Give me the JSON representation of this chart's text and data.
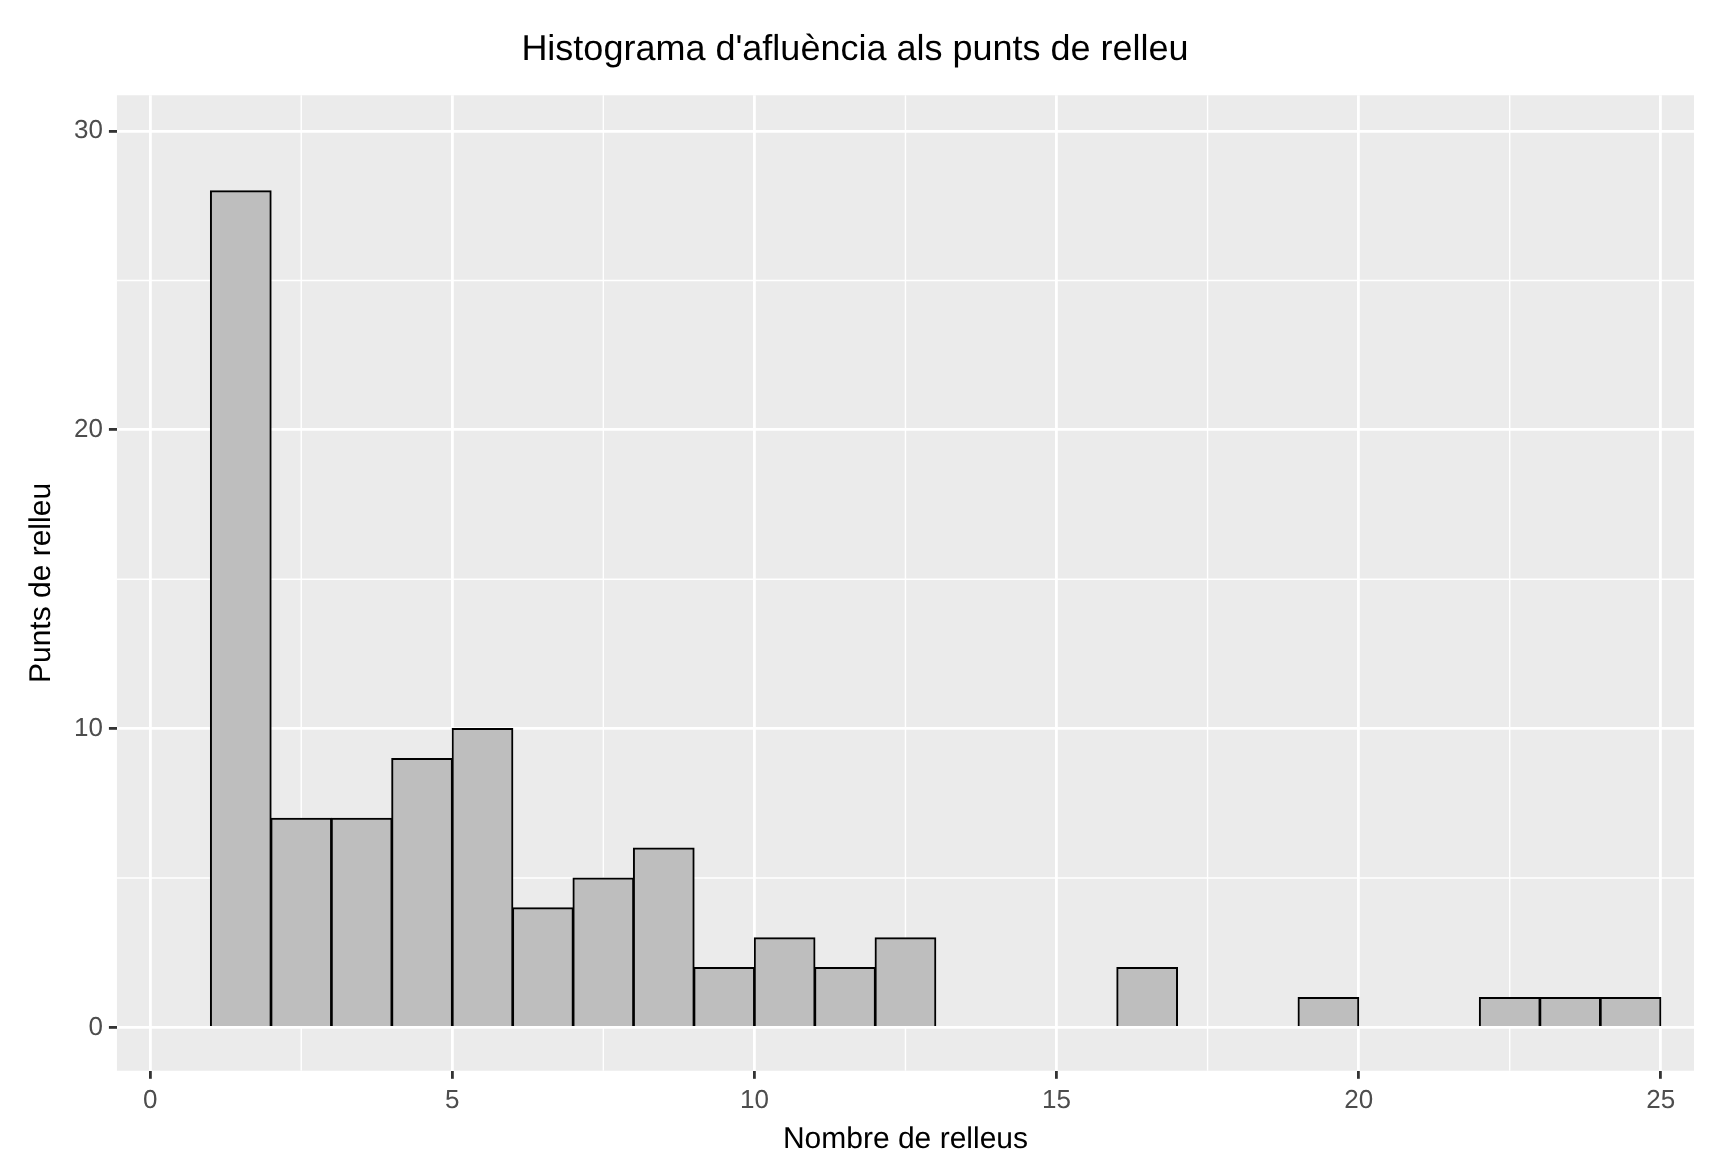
{
  "chart_data": {
    "type": "histogram",
    "title": "Histograma d'afluència als punts de relleu",
    "xlabel": "Nombre de relleus",
    "ylabel": "Punts de relleu",
    "bins": [
      1,
      2,
      3,
      4,
      5,
      6,
      7,
      8,
      9,
      10,
      11,
      12,
      13,
      14,
      15,
      16,
      17,
      18,
      19,
      20,
      21,
      22,
      23,
      24,
      25
    ],
    "values": [
      28,
      7,
      7,
      9,
      10,
      4,
      5,
      6,
      2,
      3,
      2,
      3,
      0,
      0,
      0,
      2,
      0,
      0,
      1,
      0,
      0,
      1,
      1,
      1
    ],
    "color": "#bebebe",
    "xlim": [
      -0.55,
      25.55
    ],
    "xticks": [
      0,
      5,
      10,
      15,
      20,
      25
    ],
    "ylim": [
      -1.45,
      31.2
    ],
    "yticks": [
      0,
      10,
      20,
      30
    ],
    "grid": true
  }
}
